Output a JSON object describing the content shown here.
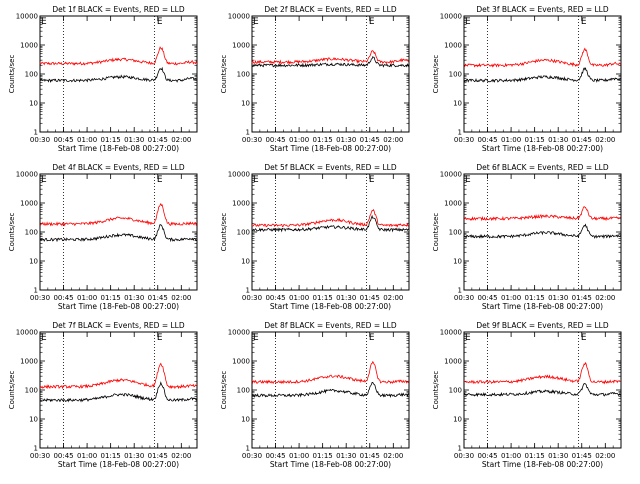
{
  "chart_data": [
    {
      "type": "line",
      "title": "Det 1f BLACK = Events, RED = LLD",
      "xlabel": "Start Time (18-Feb-08 00:27:00)",
      "ylabel": "Counts/sec",
      "x_ticks": [
        "00:30",
        "00:45",
        "01:00",
        "01:15",
        "01:30",
        "01:45",
        "02:00"
      ],
      "y_ticks": [
        "1",
        "10",
        "100",
        "1000",
        "10000"
      ],
      "yscale": "log",
      "ylim": [
        1,
        10000
      ],
      "xlim_minutes": [
        30,
        130
      ],
      "dotted_lines": [
        "00:45",
        "01:43"
      ],
      "markers": [
        {
          "label": "E",
          "at": "00:27"
        },
        {
          "label": "E",
          "at": "01:47"
        }
      ],
      "series": [
        {
          "name": "LLD",
          "color": "#ff0000",
          "base": 230,
          "hump_peak": 320,
          "flare_peak": 800,
          "bump2": 260
        },
        {
          "name": "Events",
          "color": "#000000",
          "base": 60,
          "hump_peak": 80,
          "flare_peak": 160,
          "bump2": 70
        }
      ]
    },
    {
      "type": "line",
      "title": "Det 2f BLACK = Events, RED = LLD",
      "xlabel": "Start Time (18-Feb-08 00:27:00)",
      "ylabel": "Counts/sec",
      "x_ticks": [
        "00:30",
        "00:45",
        "01:00",
        "01:15",
        "01:30",
        "01:45",
        "02:00"
      ],
      "y_ticks": [
        "1",
        "10",
        "100",
        "1000",
        "10000"
      ],
      "yscale": "log",
      "ylim": [
        1,
        10000
      ],
      "xlim_minutes": [
        30,
        130
      ],
      "dotted_lines": [
        "00:45",
        "01:43"
      ],
      "markers": [
        {
          "label": "E",
          "at": "00:27"
        },
        {
          "label": "E",
          "at": "01:47"
        }
      ],
      "series": [
        {
          "name": "LLD",
          "color": "#ff0000",
          "base": 260,
          "hump_peak": 330,
          "flare_peak": 600,
          "bump2": 300
        },
        {
          "name": "Events",
          "color": "#000000",
          "base": 200,
          "hump_peak": 220,
          "flare_peak": 360,
          "bump2": 200
        }
      ]
    },
    {
      "type": "line",
      "title": "Det 3f BLACK = Events, RED = LLD",
      "xlabel": "Start Time (18-Feb-08 00:27:00)",
      "ylabel": "Counts/sec",
      "x_ticks": [
        "00:30",
        "00:45",
        "01:00",
        "01:15",
        "01:30",
        "01:45",
        "02:00"
      ],
      "y_ticks": [
        "1",
        "10",
        "100",
        "1000",
        "10000"
      ],
      "yscale": "log",
      "ylim": [
        1,
        10000
      ],
      "xlim_minutes": [
        30,
        130
      ],
      "dotted_lines": [
        "00:45",
        "01:43"
      ],
      "markers": [
        {
          "label": "E",
          "at": "00:27"
        },
        {
          "label": "E",
          "at": "01:47"
        }
      ],
      "series": [
        {
          "name": "LLD",
          "color": "#ff0000",
          "base": 200,
          "hump_peak": 300,
          "flare_peak": 700,
          "bump2": 230
        },
        {
          "name": "Events",
          "color": "#000000",
          "base": 60,
          "hump_peak": 80,
          "flare_peak": 150,
          "bump2": 70
        }
      ]
    },
    {
      "type": "line",
      "title": "Det 4f BLACK = Events, RED = LLD",
      "xlabel": "Start Time (18-Feb-08 00:27:00)",
      "ylabel": "Counts/sec",
      "x_ticks": [
        "00:30",
        "00:45",
        "01:00",
        "01:15",
        "01:30",
        "01:45",
        "02:00"
      ],
      "y_ticks": [
        "1",
        "10",
        "100",
        "1000",
        "10000"
      ],
      "yscale": "log",
      "ylim": [
        1,
        10000
      ],
      "xlim_minutes": [
        30,
        130
      ],
      "dotted_lines": [
        "00:45",
        "01:43"
      ],
      "markers": [
        {
          "label": "E",
          "at": "00:27"
        },
        {
          "label": "E",
          "at": "01:47"
        }
      ],
      "series": [
        {
          "name": "LLD",
          "color": "#ff0000",
          "base": 190,
          "hump_peak": 300,
          "flare_peak": 900,
          "bump2": 200
        },
        {
          "name": "Events",
          "color": "#000000",
          "base": 55,
          "hump_peak": 80,
          "flare_peak": 170,
          "bump2": 60
        }
      ]
    },
    {
      "type": "line",
      "title": "Det 5f BLACK = Events, RED = LLD",
      "xlabel": "Start Time (18-Feb-08 00:27:00)",
      "ylabel": "Counts/sec",
      "x_ticks": [
        "00:30",
        "00:45",
        "01:00",
        "01:15",
        "01:30",
        "01:45",
        "02:00"
      ],
      "y_ticks": [
        "1",
        "10",
        "100",
        "1000",
        "10000"
      ],
      "yscale": "log",
      "ylim": [
        1,
        10000
      ],
      "xlim_minutes": [
        30,
        130
      ],
      "dotted_lines": [
        "00:45",
        "01:43"
      ],
      "markers": [
        {
          "label": "E",
          "at": "00:27"
        },
        {
          "label": "E",
          "at": "01:47"
        }
      ],
      "series": [
        {
          "name": "LLD",
          "color": "#ff0000",
          "base": 170,
          "hump_peak": 260,
          "flare_peak": 550,
          "bump2": 180
        },
        {
          "name": "Events",
          "color": "#000000",
          "base": 120,
          "hump_peak": 150,
          "flare_peak": 330,
          "bump2": 120
        }
      ]
    },
    {
      "type": "line",
      "title": "Det 6f BLACK = Events, RED = LLD",
      "xlabel": "Start Time (18-Feb-08 00:27:00)",
      "ylabel": "Counts/sec",
      "x_ticks": [
        "00:30",
        "00:45",
        "01:00",
        "01:15",
        "01:30",
        "01:45",
        "02:00"
      ],
      "y_ticks": [
        "1",
        "10",
        "100",
        "1000",
        "10000"
      ],
      "yscale": "log",
      "ylim": [
        1,
        10000
      ],
      "xlim_minutes": [
        30,
        130
      ],
      "dotted_lines": [
        "00:45",
        "01:43"
      ],
      "markers": [
        {
          "label": "E",
          "at": "00:27"
        },
        {
          "label": "E",
          "at": "01:47"
        }
      ],
      "series": [
        {
          "name": "LLD",
          "color": "#ff0000",
          "base": 290,
          "hump_peak": 350,
          "flare_peak": 720,
          "bump2": 300
        },
        {
          "name": "Events",
          "color": "#000000",
          "base": 70,
          "hump_peak": 95,
          "flare_peak": 170,
          "bump2": 75
        }
      ]
    },
    {
      "type": "line",
      "title": "Det 7f BLACK = Events, RED = LLD",
      "xlabel": "Start Time (18-Feb-08 00:27:00)",
      "ylabel": "Counts/sec",
      "x_ticks": [
        "00:30",
        "00:45",
        "01:00",
        "01:15",
        "01:30",
        "01:45",
        "02:00"
      ],
      "y_ticks": [
        "1",
        "10",
        "100",
        "1000",
        "10000"
      ],
      "yscale": "log",
      "ylim": [
        1,
        10000
      ],
      "xlim_minutes": [
        30,
        130
      ],
      "dotted_lines": [
        "00:45",
        "01:43"
      ],
      "markers": [
        {
          "label": "E",
          "at": "00:27"
        },
        {
          "label": "E",
          "at": "01:47"
        }
      ],
      "series": [
        {
          "name": "LLD",
          "color": "#ff0000",
          "base": 130,
          "hump_peak": 220,
          "flare_peak": 800,
          "bump2": 140
        },
        {
          "name": "Events",
          "color": "#000000",
          "base": 45,
          "hump_peak": 70,
          "flare_peak": 170,
          "bump2": 50
        }
      ]
    },
    {
      "type": "line",
      "title": "Det 8f BLACK = Events, RED = LLD",
      "xlabel": "Start Time (18-Feb-08 00:27:00)",
      "ylabel": "Counts/sec",
      "x_ticks": [
        "00:30",
        "00:45",
        "01:00",
        "01:15",
        "01:30",
        "01:45",
        "02:00"
      ],
      "y_ticks": [
        "1",
        "10",
        "100",
        "1000",
        "10000"
      ],
      "yscale": "log",
      "ylim": [
        1,
        10000
      ],
      "xlim_minutes": [
        30,
        130
      ],
      "dotted_lines": [
        "00:45",
        "01:43"
      ],
      "markers": [
        {
          "label": "E",
          "at": "00:27"
        },
        {
          "label": "E",
          "at": "01:47"
        }
      ],
      "series": [
        {
          "name": "LLD",
          "color": "#ff0000",
          "base": 190,
          "hump_peak": 300,
          "flare_peak": 850,
          "bump2": 200
        },
        {
          "name": "Events",
          "color": "#000000",
          "base": 65,
          "hump_peak": 95,
          "flare_peak": 170,
          "bump2": 70
        }
      ]
    },
    {
      "type": "line",
      "title": "Det 9f BLACK = Events, RED = LLD",
      "xlabel": "Start Time (18-Feb-08 00:27:00)",
      "ylabel": "Counts/sec",
      "x_ticks": [
        "00:30",
        "00:45",
        "01:00",
        "01:15",
        "01:30",
        "01:45",
        "02:00"
      ],
      "y_ticks": [
        "1",
        "10",
        "100",
        "1000",
        "10000"
      ],
      "yscale": "log",
      "ylim": [
        1,
        10000
      ],
      "xlim_minutes": [
        30,
        130
      ],
      "dotted_lines": [
        "00:45",
        "01:43"
      ],
      "markers": [
        {
          "label": "E",
          "at": "00:27"
        },
        {
          "label": "E",
          "at": "01:47"
        }
      ],
      "series": [
        {
          "name": "LLD",
          "color": "#ff0000",
          "base": 190,
          "hump_peak": 290,
          "flare_peak": 800,
          "bump2": 200
        },
        {
          "name": "Events",
          "color": "#000000",
          "base": 70,
          "hump_peak": 90,
          "flare_peak": 160,
          "bump2": 75
        }
      ]
    }
  ]
}
